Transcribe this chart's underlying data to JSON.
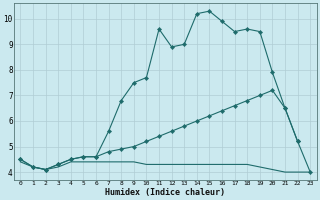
{
  "xlabel": "Humidex (Indice chaleur)",
  "bg_color": "#cbe9ef",
  "grid_color": "#b0cdd4",
  "line_color": "#1e6b6b",
  "xlim": [
    -0.5,
    23.5
  ],
  "ylim": [
    3.7,
    10.6
  ],
  "x_ticks": [
    0,
    1,
    2,
    3,
    4,
    5,
    6,
    7,
    8,
    9,
    10,
    11,
    12,
    13,
    14,
    15,
    16,
    17,
    18,
    19,
    20,
    21,
    22,
    23
  ],
  "y_ticks": [
    4,
    5,
    6,
    7,
    8,
    9,
    10
  ],
  "series_top_x": [
    0,
    1,
    2,
    3,
    4,
    5,
    6,
    7,
    8,
    9,
    10,
    11,
    12,
    13,
    14,
    15,
    16,
    17,
    18,
    19,
    20,
    21,
    22
  ],
  "series_top_y": [
    4.5,
    4.2,
    4.1,
    4.3,
    4.5,
    4.6,
    4.6,
    5.6,
    6.8,
    7.5,
    7.7,
    9.6,
    8.9,
    9.0,
    10.2,
    10.3,
    9.9,
    9.5,
    9.6,
    9.5,
    7.9,
    6.5,
    5.2
  ],
  "series_mid_x": [
    0,
    1,
    2,
    3,
    4,
    5,
    6,
    7,
    8,
    9,
    10,
    11,
    12,
    13,
    14,
    15,
    16,
    17,
    18,
    19,
    20,
    21,
    22,
    23
  ],
  "series_mid_y": [
    4.5,
    4.2,
    4.1,
    4.3,
    4.5,
    4.6,
    4.6,
    4.8,
    4.9,
    5.0,
    5.2,
    5.4,
    5.6,
    5.8,
    6.0,
    6.2,
    6.4,
    6.6,
    6.8,
    7.0,
    7.2,
    6.5,
    5.2,
    4.0
  ],
  "series_bot_x": [
    0,
    1,
    2,
    3,
    4,
    5,
    6,
    7,
    8,
    9,
    10,
    11,
    12,
    13,
    14,
    15,
    16,
    17,
    18,
    19,
    20,
    21,
    22,
    23
  ],
  "series_bot_y": [
    4.4,
    4.2,
    4.1,
    4.2,
    4.4,
    4.4,
    4.4,
    4.4,
    4.4,
    4.4,
    4.3,
    4.3,
    4.3,
    4.3,
    4.3,
    4.3,
    4.3,
    4.3,
    4.3,
    4.2,
    4.1,
    4.0,
    4.0,
    4.0
  ]
}
